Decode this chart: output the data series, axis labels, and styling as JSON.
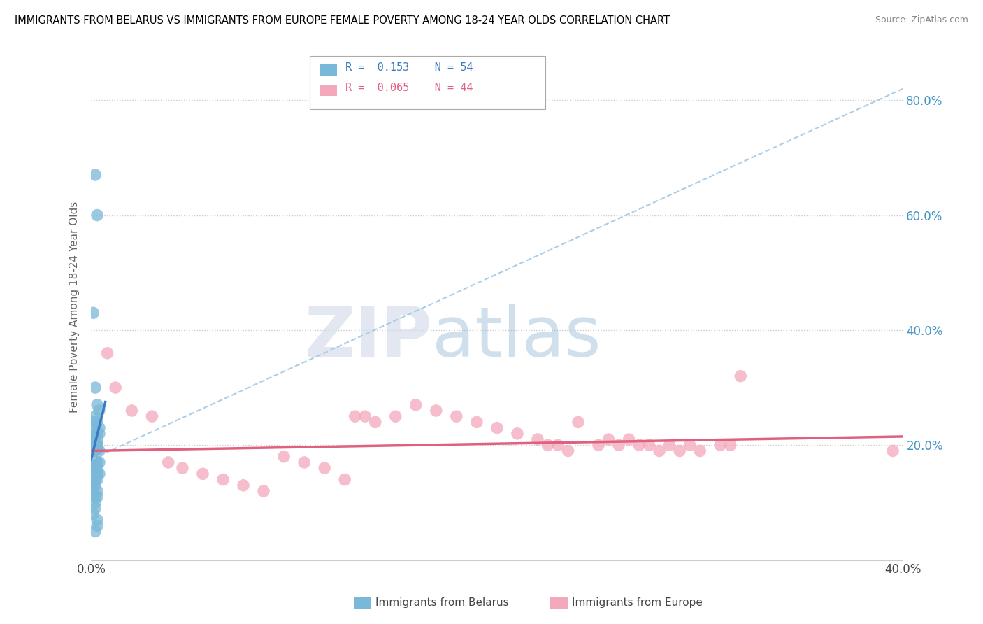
{
  "title": "IMMIGRANTS FROM BELARUS VS IMMIGRANTS FROM EUROPE FEMALE POVERTY AMONG 18-24 YEAR OLDS CORRELATION CHART",
  "source": "Source: ZipAtlas.com",
  "ylabel": "Female Poverty Among 18-24 Year Olds",
  "legend_label1": "Immigrants from Belarus",
  "legend_label2": "Immigrants from Europe",
  "R1": 0.153,
  "N1": 54,
  "R2": 0.065,
  "N2": 44,
  "color_blue": "#7ab8d9",
  "color_pink": "#f4a8bc",
  "color_blue_line": "#3a7abf",
  "color_pink_line": "#e06080",
  "color_blue_dash": "#aacde8",
  "xlim": [
    0.0,
    0.4
  ],
  "ylim": [
    0.0,
    0.88
  ],
  "xticks": [
    0.0,
    0.4
  ],
  "yticks": [
    0.2,
    0.4,
    0.6,
    0.8
  ],
  "watermark_zip": "ZIP",
  "watermark_atlas": "atlas",
  "blue_scatter_x": [
    0.002,
    0.003,
    0.001,
    0.002,
    0.003,
    0.004,
    0.002,
    0.001,
    0.003,
    0.001,
    0.004,
    0.003,
    0.004,
    0.002,
    0.003,
    0.001,
    0.002,
    0.002,
    0.001,
    0.003,
    0.003,
    0.002,
    0.004,
    0.003,
    0.002,
    0.002,
    0.001,
    0.001,
    0.002,
    0.003,
    0.004,
    0.002,
    0.003,
    0.002,
    0.002,
    0.001,
    0.003,
    0.003,
    0.004,
    0.002,
    0.002,
    0.003,
    0.001,
    0.002,
    0.003,
    0.001,
    0.002,
    0.003,
    0.002,
    0.002,
    0.001,
    0.003,
    0.003,
    0.002
  ],
  "blue_scatter_y": [
    0.67,
    0.6,
    0.43,
    0.3,
    0.27,
    0.26,
    0.25,
    0.24,
    0.24,
    0.23,
    0.23,
    0.22,
    0.22,
    0.22,
    0.21,
    0.21,
    0.21,
    0.2,
    0.2,
    0.2,
    0.2,
    0.19,
    0.19,
    0.19,
    0.19,
    0.18,
    0.18,
    0.18,
    0.17,
    0.17,
    0.17,
    0.17,
    0.16,
    0.16,
    0.16,
    0.16,
    0.15,
    0.15,
    0.15,
    0.14,
    0.14,
    0.14,
    0.13,
    0.13,
    0.12,
    0.12,
    0.11,
    0.11,
    0.1,
    0.09,
    0.08,
    0.07,
    0.06,
    0.05
  ],
  "pink_scatter_x": [
    0.008,
    0.012,
    0.02,
    0.03,
    0.038,
    0.045,
    0.055,
    0.065,
    0.075,
    0.085,
    0.095,
    0.105,
    0.115,
    0.125,
    0.13,
    0.135,
    0.14,
    0.15,
    0.16,
    0.17,
    0.18,
    0.19,
    0.2,
    0.21,
    0.22,
    0.225,
    0.23,
    0.235,
    0.24,
    0.25,
    0.255,
    0.26,
    0.265,
    0.27,
    0.275,
    0.28,
    0.285,
    0.29,
    0.295,
    0.3,
    0.31,
    0.315,
    0.32,
    0.395
  ],
  "pink_scatter_y": [
    0.36,
    0.3,
    0.26,
    0.25,
    0.17,
    0.16,
    0.15,
    0.14,
    0.13,
    0.12,
    0.18,
    0.17,
    0.16,
    0.14,
    0.25,
    0.25,
    0.24,
    0.25,
    0.27,
    0.26,
    0.25,
    0.24,
    0.23,
    0.22,
    0.21,
    0.2,
    0.2,
    0.19,
    0.24,
    0.2,
    0.21,
    0.2,
    0.21,
    0.2,
    0.2,
    0.19,
    0.2,
    0.19,
    0.2,
    0.19,
    0.2,
    0.2,
    0.32,
    0.19
  ],
  "blue_solid_line_x": [
    0.0,
    0.007
  ],
  "blue_solid_line_y": [
    0.175,
    0.275
  ],
  "blue_dash_line_x": [
    0.0,
    0.4
  ],
  "blue_dash_line_y": [
    0.175,
    0.82
  ],
  "pink_line_x": [
    0.0,
    0.4
  ],
  "pink_line_y": [
    0.19,
    0.215
  ]
}
